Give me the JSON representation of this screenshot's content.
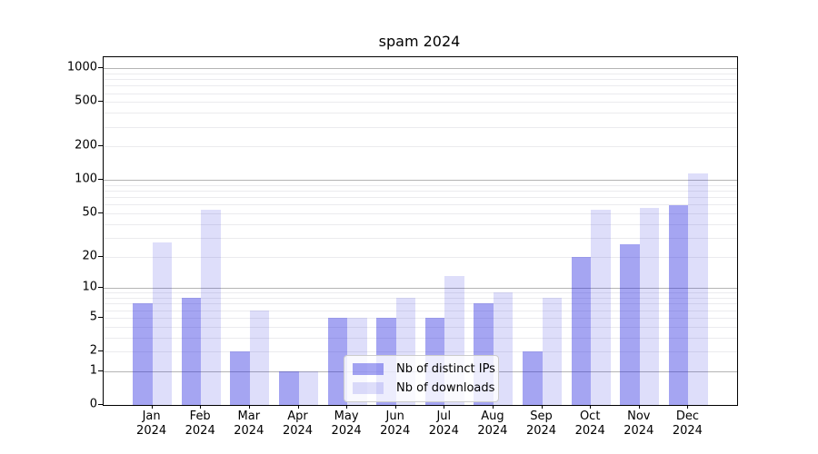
{
  "chart_data": {
    "type": "bar",
    "title": "spam 2024",
    "categories": [
      "Jan",
      "Feb",
      "Mar",
      "Apr",
      "May",
      "Jun",
      "Jul",
      "Aug",
      "Sep",
      "Oct",
      "Nov",
      "Dec"
    ],
    "category_year": "2024",
    "series": [
      {
        "name": "Nb of distinct IPs",
        "color": "rgba(30,30,222,0.40)",
        "values": [
          7,
          8,
          2,
          1,
          5,
          5,
          5,
          7,
          2,
          20,
          26,
          59
        ]
      },
      {
        "name": "Nb of downloads",
        "color": "rgba(30,30,222,0.145)",
        "values": [
          27,
          54,
          6,
          1,
          5,
          8,
          13,
          9,
          8,
          54,
          56,
          115
        ]
      }
    ],
    "xlabel": "",
    "ylabel": "",
    "yscale": "log1p",
    "ylim": [
      0,
      1255
    ],
    "y_ticks": [
      0,
      1,
      2,
      5,
      10,
      20,
      50,
      100,
      200,
      500,
      1000
    ],
    "major_grid_values": [
      1,
      10,
      100,
      1000
    ],
    "minor_grid_values": [
      2,
      3,
      4,
      5,
      6,
      7,
      8,
      9,
      20,
      30,
      40,
      50,
      60,
      70,
      80,
      90,
      200,
      300,
      400,
      500,
      600,
      700,
      800,
      900
    ],
    "grid": true,
    "legend_position": "lower center"
  }
}
